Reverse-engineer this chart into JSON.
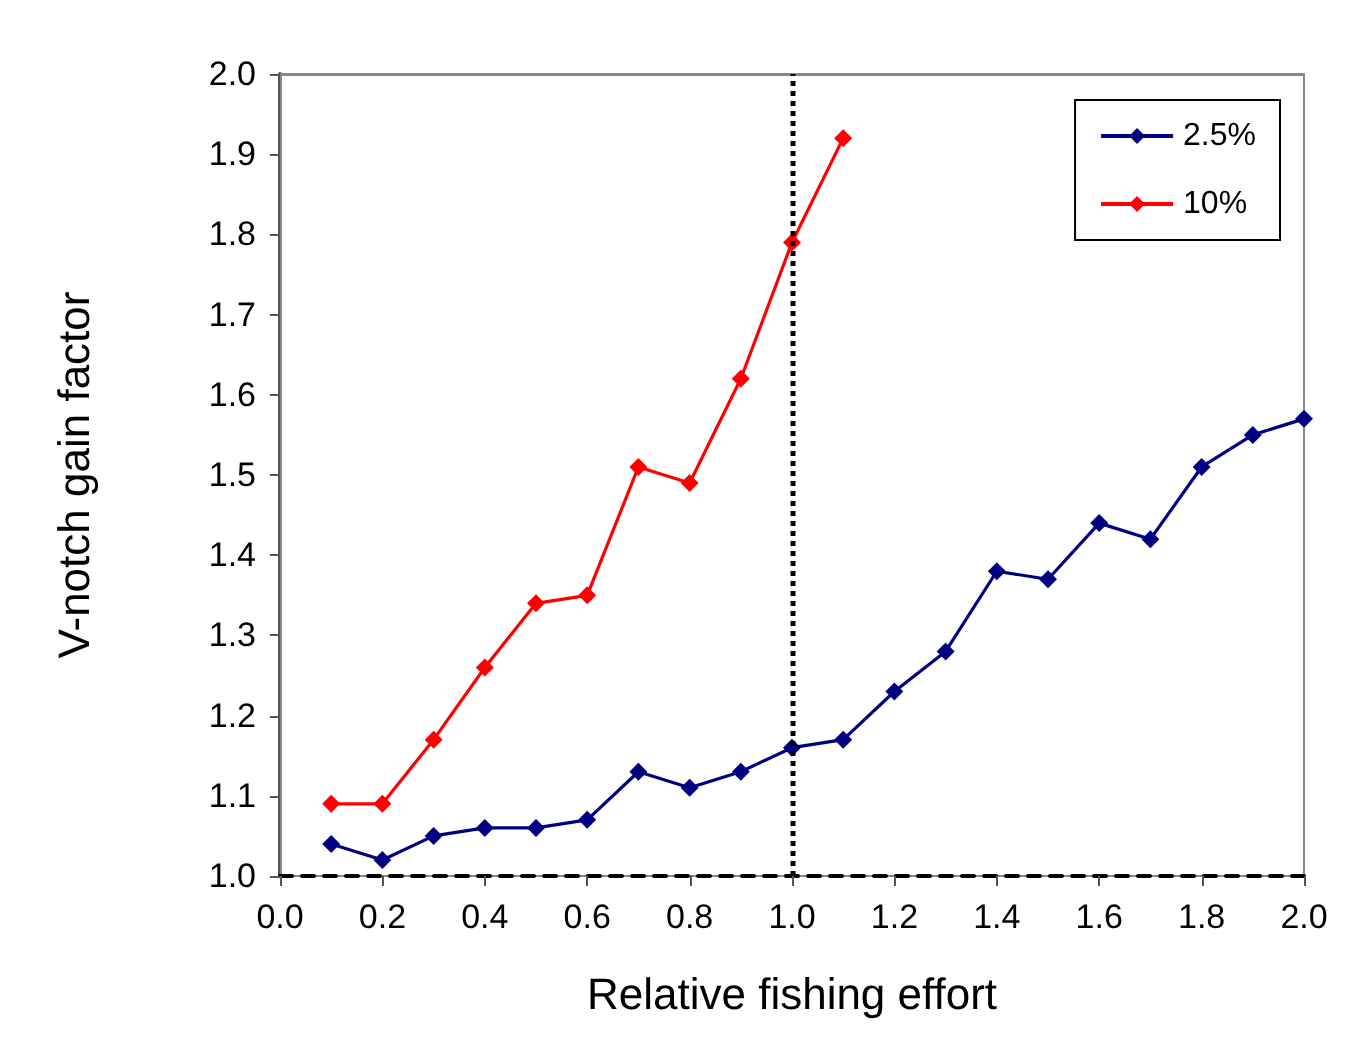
{
  "chart_data": {
    "type": "line",
    "xlabel": "Relative fishing effort",
    "ylabel": "V-notch gain factor",
    "x": [
      0.1,
      0.2,
      0.3,
      0.4,
      0.5,
      0.6,
      0.7,
      0.8,
      0.9,
      1.0,
      1.1,
      1.2,
      1.3,
      1.4,
      1.5,
      1.6,
      1.7,
      1.8,
      1.9,
      2.0
    ],
    "series": [
      {
        "name": "2.5%",
        "color": "#000080",
        "values": [
          1.04,
          1.02,
          1.05,
          1.06,
          1.06,
          1.07,
          1.13,
          1.11,
          1.13,
          1.16,
          1.17,
          1.23,
          1.28,
          1.38,
          1.37,
          1.44,
          1.42,
          1.51,
          1.55,
          1.57
        ]
      },
      {
        "name": "10%",
        "color": "#ff0000",
        "values": [
          1.09,
          1.09,
          1.17,
          1.26,
          1.34,
          1.35,
          1.51,
          1.49,
          1.62,
          1.79,
          1.92,
          null,
          null,
          null,
          null,
          null,
          null,
          null,
          null,
          null
        ]
      }
    ],
    "xlim": [
      0,
      2
    ],
    "xticks": [
      {
        "value": 0,
        "label": "0.0"
      },
      {
        "value": 0.2,
        "label": "0.2"
      },
      {
        "value": 0.4,
        "label": "0.4"
      },
      {
        "value": 0.6,
        "label": "0.6"
      },
      {
        "value": 0.8,
        "label": "0.8"
      },
      {
        "value": 1,
        "label": "1.0"
      },
      {
        "value": 1.2,
        "label": "1.2"
      },
      {
        "value": 1.4,
        "label": "1.4"
      },
      {
        "value": 1.6,
        "label": "1.6"
      },
      {
        "value": 1.8,
        "label": "1.8"
      },
      {
        "value": 2,
        "label": "2.0"
      }
    ],
    "ylim": [
      1,
      2
    ],
    "yticks": [
      {
        "value": 1,
        "label": "1.0"
      },
      {
        "value": 1.1,
        "label": "1.1"
      },
      {
        "value": 1.2,
        "label": "1.2"
      },
      {
        "value": 1.3,
        "label": "1.3"
      },
      {
        "value": 1.4,
        "label": "1.4"
      },
      {
        "value": 1.5,
        "label": "1.5"
      },
      {
        "value": 1.6,
        "label": "1.6"
      },
      {
        "value": 1.7,
        "label": "1.7"
      },
      {
        "value": 1.8,
        "label": "1.8"
      },
      {
        "value": 1.9,
        "label": "1.9"
      },
      {
        "value": 2,
        "label": "2.0"
      }
    ],
    "ref_lines": [
      {
        "axis": "x",
        "value": 1,
        "color": "#000000",
        "line_style": "dotted"
      }
    ],
    "grid": false,
    "legend": "top right",
    "marker": "diamond",
    "line_style": "solid"
  }
}
